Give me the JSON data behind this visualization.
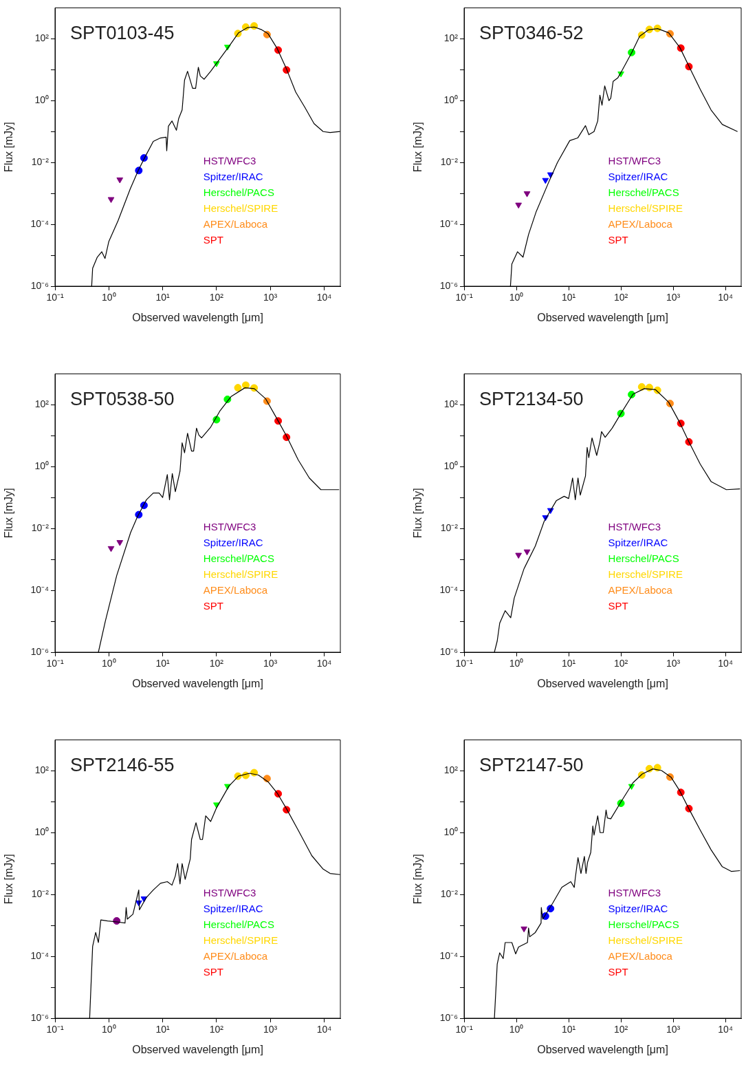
{
  "chart_data": [
    {
      "type": "scatter",
      "title": "SPT0103-45",
      "xlabel": "Observed wavelength [μm]",
      "ylabel": "Flux [mJy]",
      "log": "xy",
      "legend": "right",
      "xlim": [
        0.1,
        20000
      ],
      "ylim": [
        1e-06,
        1000
      ],
      "xticks": [
        {
          "value": 0.1,
          "label": "10⁻¹"
        },
        {
          "value": 1,
          "label": "10⁰"
        },
        {
          "value": 10,
          "label": "10¹"
        },
        {
          "value": 100,
          "label": "10²"
        },
        {
          "value": 1000,
          "label": "10³"
        },
        {
          "value": 10000,
          "label": "10⁴"
        }
      ],
      "yticks": [
        {
          "value": 1e-06,
          "label": "10⁻⁶"
        },
        {
          "value": 1e-05,
          "label": null
        },
        {
          "value": 0.0001,
          "label": "10⁻⁴"
        },
        {
          "value": 0.001,
          "label": null
        },
        {
          "value": 0.01,
          "label": "10⁻²"
        },
        {
          "value": 0.1,
          "label": null
        },
        {
          "value": 1,
          "label": "10⁰"
        },
        {
          "value": 10,
          "label": null
        },
        {
          "value": 100,
          "label": "10²"
        }
      ],
      "series": [
        {
          "type": "line",
          "color": "#000000",
          "marker": "none",
          "x": [
            0.48,
            0.5,
            0.61,
            0.74,
            0.85,
            1.0,
            1.48,
            2.5,
            3.5,
            4.6,
            6.7,
            9.1,
            11.6,
            11.9,
            12.8,
            14.9,
            18,
            19.8,
            23,
            25.5,
            29,
            36,
            41,
            46,
            50,
            59,
            78,
            100,
            170,
            256,
            374,
            503,
            675,
            910,
            1345,
            2000,
            2960,
            4400,
            6500,
            9600,
            12900,
            19800
          ],
          "values": [
            1e-06,
            3.8e-06,
            8.7e-06,
            1.3e-05,
            7.9e-06,
            2.8e-05,
            0.00013,
            0.0014,
            0.0054,
            0.014,
            0.048,
            0.062,
            0.066,
            0.024,
            0.15,
            0.22,
            0.11,
            0.26,
            0.5,
            4.6,
            8.9,
            2.5,
            2.5,
            12,
            6.3,
            4.9,
            8.9,
            16,
            56,
            155,
            229,
            240,
            200,
            145,
            48,
            10.5,
            1.9,
            0.6,
            0.18,
            0.1,
            0.093,
            0.1
          ]
        },
        {
          "name": "HST/WFC3",
          "color": "#7f007f",
          "marker": "triangle",
          "x": [
            1.1,
            1.6
          ],
          "values": [
            0.00065,
            0.0028
          ]
        },
        {
          "name": "Spitzer/IRAC",
          "color": "#0000ff",
          "marker": "circle",
          "x": [
            3.6,
            4.5
          ],
          "values": [
            0.0055,
            0.014
          ]
        },
        {
          "name": "Herschel/PACS",
          "color": "#00ff00",
          "marker": "triangle",
          "x": [
            100,
            160
          ],
          "values": [
            16,
            55
          ]
        },
        {
          "name": "Herschel/SPIRE",
          "color": "#ffd700",
          "marker": "circle",
          "x": [
            250,
            350,
            500
          ],
          "values": [
            148,
            240,
            260
          ]
        },
        {
          "name": "APEX/Laboca",
          "color": "#ff8c1a",
          "marker": "circle",
          "x": [
            870
          ],
          "values": [
            137
          ]
        },
        {
          "name": "SPT",
          "color": "#ff0000",
          "marker": "circle",
          "x": [
            1400,
            2000
          ],
          "values": [
            43,
            9.8
          ]
        }
      ]
    },
    {
      "type": "scatter",
      "title": "SPT0346-52",
      "xlabel": "Observed wavelength [μm]",
      "ylabel": "Flux [mJy]",
      "log": "xy",
      "legend": "right",
      "xlim": [
        0.1,
        20000
      ],
      "ylim": [
        1e-06,
        1000
      ],
      "xticks": [
        {
          "value": 0.1,
          "label": "10⁻¹"
        },
        {
          "value": 1,
          "label": "10⁰"
        },
        {
          "value": 10,
          "label": "10¹"
        },
        {
          "value": 100,
          "label": "10²"
        },
        {
          "value": 1000,
          "label": "10³"
        },
        {
          "value": 10000,
          "label": "10⁴"
        }
      ],
      "yticks": [
        {
          "value": 1e-06,
          "label": "10⁻⁶"
        },
        {
          "value": 1e-05,
          "label": null
        },
        {
          "value": 0.0001,
          "label": "10⁻⁴"
        },
        {
          "value": 0.001,
          "label": null
        },
        {
          "value": 0.01,
          "label": "10⁻²"
        },
        {
          "value": 0.1,
          "label": null
        },
        {
          "value": 1,
          "label": "10⁰"
        },
        {
          "value": 10,
          "label": null
        },
        {
          "value": 100,
          "label": "10²"
        }
      ],
      "series": [
        {
          "type": "line",
          "color": "#000000",
          "marker": "none",
          "x": [
            0.77,
            0.82,
            1.05,
            1.34,
            1.71,
            2.4,
            4.15,
            6.1,
            10.5,
            14.9,
            21,
            24.3,
            30.6,
            36,
            39.6,
            43.5,
            49,
            59,
            64,
            71,
            87,
            100,
            163,
            228,
            338,
            503,
            820,
            1345,
            2000,
            3300,
            5300,
            8700,
            17000
          ],
          "values": [
            1e-06,
            5.2e-06,
            1.3e-05,
            8.7e-06,
            4.7e-05,
            0.00026,
            0.0023,
            0.01,
            0.051,
            0.062,
            0.155,
            0.079,
            0.1,
            0.22,
            1.5,
            0.71,
            3.0,
            1.0,
            1.2,
            4.2,
            5.4,
            8.1,
            37,
            120,
            195,
            213,
            156,
            52,
            13,
            2.3,
            0.5,
            0.17,
            0.1
          ]
        },
        {
          "name": "HST/WFC3",
          "color": "#7f007f",
          "marker": "triangle",
          "x": [
            1.1,
            1.6
          ],
          "values": [
            0.00043,
            0.001
          ]
        },
        {
          "name": "Spitzer/IRAC",
          "color": "#0000ff",
          "marker": "triangle",
          "x": [
            3.6,
            4.5
          ],
          "values": [
            0.0027,
            0.0041
          ]
        },
        {
          "name": "Herschel/PACS",
          "color": "#00ff00",
          "marker": "triangle",
          "x": [
            100
          ],
          "values": [
            7.5
          ]
        },
        {
          "color": "#00ff00",
          "marker": "circle",
          "x": [
            160
          ],
          "values": [
            36
          ]
        },
        {
          "name": "Herschel/SPIRE",
          "color": "#ffd700",
          "marker": "circle",
          "x": [
            250,
            350,
            500
          ],
          "values": [
            132,
            200,
            218
          ]
        },
        {
          "name": "APEX/Laboca",
          "color": "#ff8c1a",
          "marker": "circle",
          "x": [
            870
          ],
          "values": [
            145
          ]
        },
        {
          "name": "SPT",
          "color": "#ff0000",
          "marker": "circle",
          "x": [
            1400,
            2000
          ],
          "values": [
            50,
            12.6
          ]
        }
      ]
    },
    {
      "type": "scatter",
      "title": "SPT0538-50",
      "xlabel": "Observed wavelength [μm]",
      "ylabel": "Flux [mJy]",
      "log": "xy",
      "legend": "right",
      "xlim": [
        0.1,
        20000
      ],
      "ylim": [
        1e-06,
        1000
      ],
      "xticks": [
        {
          "value": 0.1,
          "label": "10⁻¹"
        },
        {
          "value": 1,
          "label": "10⁰"
        },
        {
          "value": 10,
          "label": "10¹"
        },
        {
          "value": 100,
          "label": "10²"
        },
        {
          "value": 1000,
          "label": "10³"
        },
        {
          "value": 10000,
          "label": "10⁴"
        }
      ],
      "yticks": [
        {
          "value": 1e-06,
          "label": "10⁻⁶"
        },
        {
          "value": 1e-05,
          "label": null
        },
        {
          "value": 0.0001,
          "label": "10⁻⁴"
        },
        {
          "value": 0.001,
          "label": null
        },
        {
          "value": 0.01,
          "label": "10⁻²"
        },
        {
          "value": 0.1,
          "label": null
        },
        {
          "value": 1,
          "label": "10⁰"
        },
        {
          "value": 10,
          "label": null
        },
        {
          "value": 100,
          "label": "10²"
        }
      ],
      "series": [
        {
          "type": "line",
          "color": "#000000",
          "marker": "none",
          "x": [
            0.64,
            0.86,
            1.4,
            2.54,
            3.4,
            5.0,
            6.7,
            8.6,
            10,
            12.2,
            13.4,
            15.1,
            17.2,
            21,
            23,
            25.5,
            29,
            34.4,
            37.6,
            42.6,
            47,
            53,
            78,
            115,
            188,
            338,
            503,
            820,
            1345,
            2000,
            3300,
            5300,
            8700,
            19000
          ],
          "values": [
            1e-06,
            1e-05,
            0.0003,
            0.0074,
            0.024,
            0.085,
            0.14,
            0.14,
            0.1,
            0.55,
            0.085,
            0.6,
            0.155,
            0.71,
            5.9,
            2.8,
            12,
            3.2,
            3.2,
            17.5,
            10.5,
            8.5,
            19,
            62,
            186,
            355,
            333,
            156,
            34,
            9.8,
            1.65,
            0.43,
            0.18,
            0.18
          ]
        },
        {
          "name": "HST/WFC3",
          "color": "#7f007f",
          "marker": "triangle",
          "x": [
            1.1,
            1.6
          ],
          "values": [
            0.0023,
            0.0036
          ]
        },
        {
          "name": "Spitzer/IRAC",
          "color": "#0000ff",
          "marker": "circle",
          "x": [
            3.6,
            4.5
          ],
          "values": [
            0.028,
            0.056
          ]
        },
        {
          "name": "Herschel/PACS",
          "color": "#00ff00",
          "marker": "circle",
          "x": [
            100,
            160
          ],
          "values": [
            33,
            150
          ]
        },
        {
          "name": "Herschel/SPIRE",
          "color": "#ffd700",
          "marker": "circle",
          "x": [
            250,
            350,
            500
          ],
          "values": [
            355,
            430,
            350
          ]
        },
        {
          "name": "APEX/Laboca",
          "color": "#ff8c1a",
          "marker": "circle",
          "x": [
            870
          ],
          "values": [
            131
          ]
        },
        {
          "name": "SPT",
          "color": "#ff0000",
          "marker": "circle",
          "x": [
            1400,
            2000
          ],
          "values": [
            30,
            8.9
          ]
        }
      ]
    },
    {
      "type": "scatter",
      "title": "SPT2134-50",
      "xlabel": "Observed wavelength [μm]",
      "ylabel": "Flux [mJy]",
      "log": "xy",
      "legend": "right",
      "xlim": [
        0.1,
        20000
      ],
      "ylim": [
        1e-06,
        1000
      ],
      "xticks": [
        {
          "value": 0.1,
          "label": "10⁻¹"
        },
        {
          "value": 1,
          "label": "10⁰"
        },
        {
          "value": 10,
          "label": "10¹"
        },
        {
          "value": 100,
          "label": "10²"
        },
        {
          "value": 1000,
          "label": "10³"
        },
        {
          "value": 10000,
          "label": "10⁴"
        }
      ],
      "yticks": [
        {
          "value": 1e-06,
          "label": "10⁻⁶"
        },
        {
          "value": 1e-05,
          "label": null
        },
        {
          "value": 0.0001,
          "label": "10⁻⁴"
        },
        {
          "value": 0.001,
          "label": null
        },
        {
          "value": 0.01,
          "label": "10⁻²"
        },
        {
          "value": 0.1,
          "label": null
        },
        {
          "value": 1,
          "label": "10⁰"
        },
        {
          "value": 10,
          "label": null
        },
        {
          "value": 100,
          "label": "10²"
        }
      ],
      "series": [
        {
          "type": "line",
          "color": "#000000",
          "marker": "none",
          "x": [
            0.38,
            0.43,
            0.48,
            0.61,
            0.78,
            0.91,
            1.4,
            2.3,
            3.4,
            5.8,
            8.2,
            10,
            11.9,
            13.4,
            15.1,
            16.7,
            21,
            22.6,
            24.3,
            28,
            34.4,
            39.6,
            42.6,
            50,
            68,
            100,
            170,
            280,
            460,
            820,
            1345,
            2000,
            3300,
            5300,
            10400,
            19000
          ],
          "values": [
            1e-06,
            2.3e-06,
            8.7e-06,
            2.2e-05,
            1.3e-05,
            5.6e-05,
            0.0005,
            0.0027,
            0.017,
            0.079,
            0.11,
            0.093,
            0.43,
            0.085,
            0.43,
            0.12,
            0.5,
            4.2,
            1.95,
            8.5,
            2.3,
            6.3,
            13.5,
            8.9,
            17.5,
            52,
            219,
            333,
            307,
            121,
            26,
            6.3,
            1.2,
            0.33,
            0.18,
            0.19
          ]
        },
        {
          "name": "HST/WFC3",
          "color": "#7f007f",
          "marker": "triangle",
          "x": [
            1.1,
            1.6
          ],
          "values": [
            0.0014,
            0.0018
          ]
        },
        {
          "name": "Spitzer/IRAC",
          "color": "#0000ff",
          "marker": "triangle",
          "x": [
            3.6,
            4.5
          ],
          "values": [
            0.023,
            0.039
          ]
        },
        {
          "name": "Herschel/PACS",
          "color": "#00ff00",
          "marker": "circle",
          "x": [
            100,
            160
          ],
          "values": [
            52,
            214
          ]
        },
        {
          "name": "Herschel/SPIRE",
          "color": "#ffd700",
          "marker": "circle",
          "x": [
            250,
            350,
            500
          ],
          "values": [
            380,
            363,
            295
          ]
        },
        {
          "name": "APEX/Laboca",
          "color": "#ff8c1a",
          "marker": "circle",
          "x": [
            870
          ],
          "values": [
            110
          ]
        },
        {
          "name": "SPT",
          "color": "#ff0000",
          "marker": "circle",
          "x": [
            1400,
            2000
          ],
          "values": [
            25,
            6.3
          ]
        }
      ]
    },
    {
      "type": "scatter",
      "title": "SPT2146-55",
      "xlabel": "Observed wavelength [μm]",
      "ylabel": "Flux [mJy]",
      "log": "xy",
      "legend": "right",
      "xlim": [
        0.1,
        20000
      ],
      "ylim": [
        1e-06,
        1000
      ],
      "xticks": [
        {
          "value": 0.1,
          "label": "10⁻¹"
        },
        {
          "value": 1,
          "label": "10⁰"
        },
        {
          "value": 10,
          "label": "10¹"
        },
        {
          "value": 100,
          "label": "10²"
        },
        {
          "value": 1000,
          "label": "10³"
        },
        {
          "value": 10000,
          "label": "10⁴"
        }
      ],
      "yticks": [
        {
          "value": 1e-06,
          "label": "10⁻⁶"
        },
        {
          "value": 1e-05,
          "label": null
        },
        {
          "value": 0.0001,
          "label": "10⁻⁴"
        },
        {
          "value": 0.001,
          "label": null
        },
        {
          "value": 0.01,
          "label": "10⁻²"
        },
        {
          "value": 0.1,
          "label": null
        },
        {
          "value": 1,
          "label": "10⁰"
        },
        {
          "value": 10,
          "label": null
        },
        {
          "value": 100,
          "label": "10²"
        }
      ],
      "series": [
        {
          "type": "line",
          "color": "#000000",
          "marker": "none",
          "x": [
            0.44,
            0.5,
            0.57,
            0.64,
            0.71,
            0.95,
            1.41,
            2.0,
            2.1,
            2.2,
            2.8,
            3.6,
            3.7,
            5.0,
            6.7,
            9.1,
            12.2,
            14.9,
            17.2,
            19,
            21,
            23,
            26.2,
            32.5,
            34.4,
            41.6,
            50,
            55,
            63,
            78,
            100,
            170,
            256,
            410,
            600,
            910,
            1345,
            2000,
            3300,
            5900,
            9600,
            12900,
            19800
          ],
          "values": [
            1e-06,
            0.00021,
            0.00059,
            0.00028,
            0.0015,
            0.0014,
            0.0013,
            0.0012,
            0.0038,
            0.0016,
            0.0023,
            0.014,
            0.0032,
            0.0081,
            0.014,
            0.023,
            0.026,
            0.02,
            0.04,
            0.1,
            0.022,
            0.1,
            0.031,
            0.14,
            0.6,
            2.1,
            0.6,
            0.6,
            3.5,
            2.3,
            6.3,
            32,
            67,
            83,
            73,
            44,
            19,
            5.9,
            1.2,
            0.18,
            0.066,
            0.048,
            0.044
          ]
        },
        {
          "name": "HST/WFC3",
          "color": "#7f007f",
          "marker": "circle",
          "x": [
            1.4
          ],
          "values": [
            0.0014
          ]
        },
        {
          "name": "Spitzer/IRAC",
          "color": "#0000ff",
          "marker": "triangle",
          "x": [
            3.6,
            4.5
          ],
          "values": [
            0.0055,
            0.0074
          ]
        },
        {
          "name": "Herschel/PACS",
          "color": "#00ff00",
          "marker": "triangle",
          "x": [
            100,
            160
          ],
          "values": [
            8.1,
            32
          ]
        },
        {
          "name": "Herschel/SPIRE",
          "color": "#ffd700",
          "marker": "circle",
          "x": [
            250,
            350,
            500
          ],
          "values": [
            67,
            71,
            87
          ]
        },
        {
          "name": "APEX/Laboca",
          "color": "#ff8c1a",
          "marker": "circle",
          "x": [
            870
          ],
          "values": [
            56
          ]
        },
        {
          "name": "SPT",
          "color": "#ff0000",
          "marker": "circle",
          "x": [
            1400,
            2000
          ],
          "values": [
            18,
            5.5
          ]
        }
      ]
    },
    {
      "type": "scatter",
      "title": "SPT2147-50",
      "xlabel": "Observed wavelength [μm]",
      "ylabel": "Flux [mJy]",
      "log": "xy",
      "legend": "right",
      "xlim": [
        0.1,
        20000
      ],
      "ylim": [
        1e-06,
        1000
      ],
      "xticks": [
        {
          "value": 0.1,
          "label": "10⁻¹"
        },
        {
          "value": 1,
          "label": "10⁰"
        },
        {
          "value": 10,
          "label": "10¹"
        },
        {
          "value": 100,
          "label": "10²"
        },
        {
          "value": 1000,
          "label": "10³"
        },
        {
          "value": 10000,
          "label": "10⁴"
        }
      ],
      "yticks": [
        {
          "value": 1e-06,
          "label": "10⁻⁶"
        },
        {
          "value": 1e-05,
          "label": null
        },
        {
          "value": 0.0001,
          "label": "10⁻⁴"
        },
        {
          "value": 0.001,
          "label": null
        },
        {
          "value": 0.01,
          "label": "10⁻²"
        },
        {
          "value": 0.1,
          "label": null
        },
        {
          "value": 1,
          "label": "10⁰"
        },
        {
          "value": 10,
          "label": null
        },
        {
          "value": 100,
          "label": "10²"
        }
      ],
      "series": [
        {
          "type": "line",
          "color": "#000000",
          "marker": "none",
          "x": [
            0.38,
            0.43,
            0.48,
            0.56,
            0.61,
            0.82,
            0.97,
            1.1,
            1.63,
            1.71,
            1.8,
            2.3,
            2.97,
            3.0,
            3.2,
            5.0,
            7.4,
            11,
            12.8,
            13.4,
            15.1,
            17.2,
            20,
            21.5,
            23,
            26.5,
            29,
            30.6,
            36,
            40,
            46,
            52,
            55,
            64,
            100,
            170,
            256,
            410,
            600,
            910,
            1345,
            2000,
            3300,
            5300,
            8700,
            12900,
            19000
          ],
          "values": [
            1e-06,
            5.6e-05,
            0.00013,
            8.5e-05,
            0.00028,
            0.00028,
            0.00012,
            0.0002,
            0.00028,
            0.00083,
            0.00043,
            0.00059,
            0.0012,
            0.0038,
            0.0016,
            0.0054,
            0.017,
            0.026,
            0.017,
            0.034,
            0.155,
            0.048,
            0.17,
            0.048,
            0.11,
            0.23,
            1.65,
            0.83,
            3.5,
            1.0,
            1.0,
            5.4,
            3.0,
            2.8,
            9.8,
            41,
            79,
            115,
            102,
            62,
            22,
            5.9,
            1.2,
            0.28,
            0.079,
            0.056,
            0.059
          ]
        },
        {
          "name": "HST/WFC3",
          "color": "#7f007f",
          "marker": "triangle",
          "x": [
            1.4
          ],
          "values": [
            0.00079
          ]
        },
        {
          "name": "Spitzer/IRAC",
          "color": "#0000ff",
          "marker": "circle",
          "x": [
            3.6,
            4.5
          ],
          "values": [
            0.002,
            0.0035
          ]
        },
        {
          "name": "Herschel/PACS",
          "color": "#00ff00",
          "marker": "circle",
          "x": [
            100
          ],
          "values": [
            8.9
          ]
        },
        {
          "color": "#00ff00",
          "marker": "triangle",
          "x": [
            160
          ],
          "values": [
            32
          ]
        },
        {
          "name": "Herschel/SPIRE",
          "color": "#ffd700",
          "marker": "circle",
          "x": [
            250,
            350,
            500
          ],
          "values": [
            73,
            117,
            126
          ]
        },
        {
          "name": "APEX/Laboca",
          "color": "#ff8c1a",
          "marker": "circle",
          "x": [
            870
          ],
          "values": [
            63
          ]
        },
        {
          "name": "SPT",
          "color": "#ff0000",
          "marker": "circle",
          "x": [
            1400,
            2000
          ],
          "values": [
            20,
            6.0
          ]
        }
      ]
    }
  ]
}
